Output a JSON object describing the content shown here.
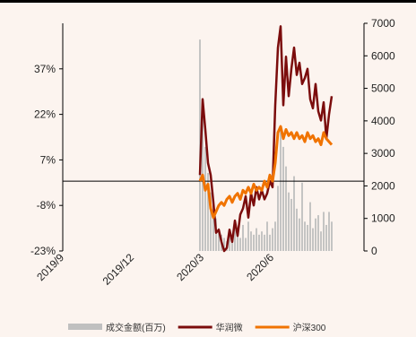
{
  "chart_data": {
    "type": "line",
    "title": "",
    "xlabel": "",
    "ylabel_left": "",
    "ylabel_right": "",
    "x_ticks": [
      "2019/9",
      "2019/12",
      "2020/3",
      "2020/6"
    ],
    "y_left_ticks": [
      "37%",
      "22%",
      "7%",
      "-8%",
      "-23%"
    ],
    "y_left_range": [
      -23,
      52
    ],
    "y_right_ticks": [
      "7000",
      "6000",
      "5000",
      "4000",
      "3000",
      "2000",
      "1000",
      "0"
    ],
    "y_right_range": [
      0,
      7000
    ],
    "legend_position": "bottom",
    "grid": false,
    "series": [
      {
        "name": "成交金额(百万)",
        "kind": "bar",
        "axis": "right",
        "color": "#C0C0C0",
        "x": [
          51,
          52,
          53,
          54,
          55,
          56,
          57,
          58,
          59,
          60,
          61,
          62,
          63,
          64,
          65,
          66,
          67,
          68,
          69,
          70,
          71,
          72,
          73,
          74,
          75,
          76,
          77,
          78,
          79,
          80,
          81,
          82,
          83,
          84,
          85,
          86,
          87,
          88,
          89,
          90,
          91,
          92,
          93,
          94,
          95,
          96,
          97,
          98,
          99,
          100
        ],
        "values": [
          6500,
          4700,
          3200,
          2400,
          1800,
          1500,
          1000,
          700,
          500,
          400,
          300,
          600,
          300,
          700,
          600,
          400,
          800,
          400,
          900,
          600,
          500,
          700,
          500,
          600,
          500,
          900,
          500,
          700,
          900,
          2000,
          3800,
          3200,
          2600,
          1800,
          1600,
          2300,
          1300,
          1000,
          2100,
          900,
          800,
          1500,
          700,
          1000,
          1100,
          600,
          1200,
          800,
          1200,
          900
        ]
      },
      {
        "name": "华润微",
        "kind": "line",
        "axis": "left",
        "color": "#7B0C0C",
        "x": [
          51,
          52,
          53,
          54,
          55,
          56,
          57,
          58,
          59,
          60,
          61,
          62,
          63,
          64,
          65,
          66,
          67,
          68,
          69,
          70,
          71,
          72,
          73,
          74,
          75,
          76,
          77,
          78,
          79,
          80,
          81,
          82,
          83,
          84,
          85,
          86,
          87,
          88,
          89,
          90,
          91,
          92,
          93,
          94,
          95,
          96,
          97,
          98,
          99,
          100
        ],
        "values": [
          2,
          27,
          17,
          6,
          2,
          -7,
          -17,
          -16,
          -20,
          -23,
          -22,
          -16,
          -20,
          -13,
          -18,
          -11,
          -9,
          -5,
          -12,
          -4,
          -8,
          -2,
          -6,
          -3,
          -6,
          -4,
          0,
          -2,
          25,
          44,
          51,
          25,
          41,
          28,
          37,
          44,
          35,
          39,
          32,
          34,
          37,
          27,
          24,
          32,
          23,
          20,
          26,
          14,
          22,
          28
        ]
      },
      {
        "name": "沪深300",
        "kind": "line",
        "axis": "left",
        "color": "#F07300",
        "x": [
          51,
          52,
          53,
          54,
          55,
          56,
          57,
          58,
          59,
          60,
          61,
          62,
          63,
          64,
          65,
          66,
          67,
          68,
          69,
          70,
          71,
          72,
          73,
          74,
          75,
          76,
          77,
          78,
          79,
          80,
          81,
          82,
          83,
          84,
          85,
          86,
          87,
          88,
          89,
          90,
          91,
          92,
          93,
          94,
          95,
          96,
          97,
          98,
          99,
          100
        ],
        "values": [
          0,
          2,
          -3,
          -1,
          -9,
          -12,
          -10,
          -8,
          -7,
          -8,
          -6,
          -5,
          -7,
          -5,
          -4,
          -6,
          -3,
          -4,
          -2,
          -4,
          -1,
          -3,
          -2,
          -3,
          0,
          -2,
          2,
          0,
          6,
          16,
          18,
          14,
          17,
          15,
          16,
          14,
          16,
          14,
          15,
          13,
          16,
          14,
          15,
          13,
          14,
          12,
          16,
          14,
          13,
          12
        ]
      }
    ]
  }
}
